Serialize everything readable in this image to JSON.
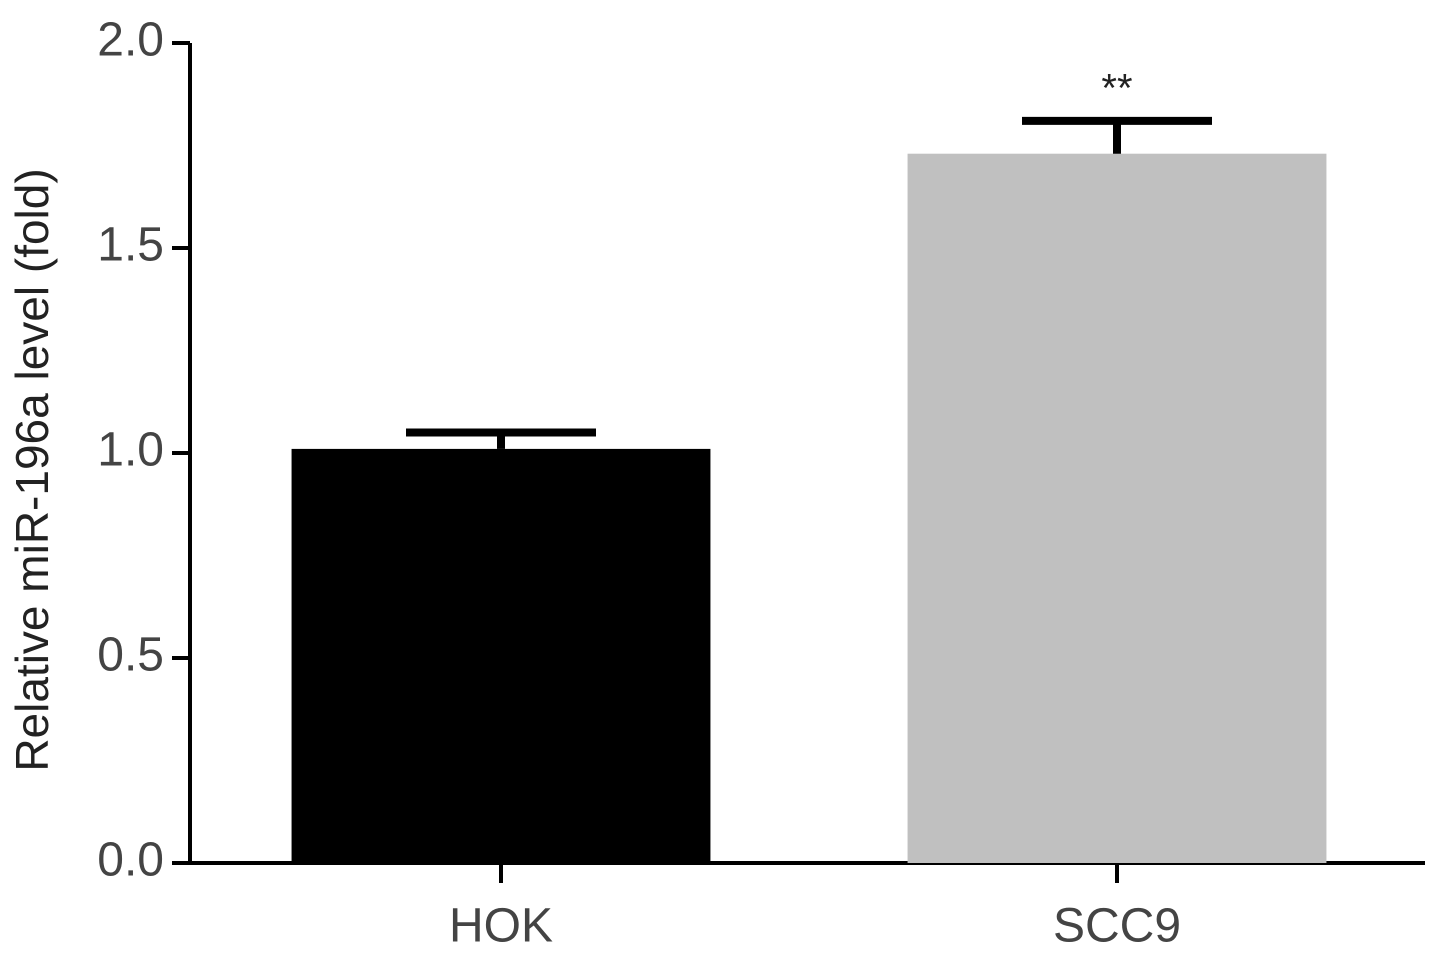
{
  "chart_data": {
    "type": "bar",
    "y_label": "Relative miR-196a level (fold)",
    "categories": [
      "HOK",
      "SCC9"
    ],
    "values": [
      1.01,
      1.73
    ],
    "errors": [
      0.04,
      0.08
    ],
    "colors": [
      "#000000",
      "#c0c0c0"
    ],
    "ylim": [
      0,
      2.0
    ],
    "yticks": [
      {
        "value": 0,
        "label": "0.0"
      },
      0.5,
      {
        "value": 1.0,
        "label": "1.0"
      },
      1.5,
      {
        "value": 2.0,
        "label": "2.0"
      }
    ],
    "annotations": [
      {
        "text": "**",
        "category": "SCC9"
      }
    ],
    "grid": false
  }
}
